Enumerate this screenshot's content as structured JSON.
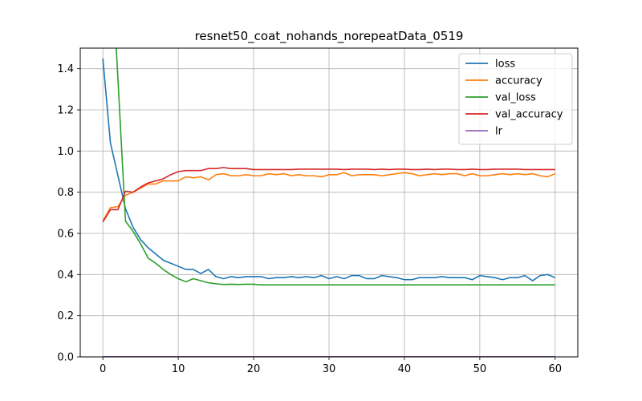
{
  "chart_data": {
    "type": "line",
    "title": "resnet50_coat_nohands_norepeatData_0519",
    "xlabel": "",
    "ylabel": "",
    "xlim": [
      -3,
      63
    ],
    "ylim": [
      0,
      1.5
    ],
    "xticks": [
      0,
      10,
      20,
      30,
      40,
      50,
      60
    ],
    "yticks": [
      0.0,
      0.2,
      0.4,
      0.6,
      0.8,
      1.0,
      1.2,
      1.4
    ],
    "grid": true,
    "legend": "top-right",
    "x": [
      0,
      1,
      2,
      3,
      4,
      5,
      6,
      7,
      8,
      9,
      10,
      11,
      12,
      13,
      14,
      15,
      16,
      17,
      18,
      19,
      20,
      21,
      22,
      23,
      24,
      25,
      26,
      27,
      28,
      29,
      30,
      31,
      32,
      33,
      34,
      35,
      36,
      37,
      38,
      39,
      40,
      41,
      42,
      43,
      44,
      45,
      46,
      47,
      48,
      49,
      50,
      51,
      52,
      53,
      54,
      55,
      56,
      57,
      58,
      59,
      60
    ],
    "series": [
      {
        "name": "loss",
        "color": "#1f77b4",
        "values": [
          1.45,
          1.04,
          0.88,
          0.72,
          0.63,
          0.57,
          0.53,
          0.5,
          0.47,
          0.455,
          0.44,
          0.425,
          0.425,
          0.405,
          0.425,
          0.39,
          0.38,
          0.39,
          0.385,
          0.39,
          0.39,
          0.39,
          0.38,
          0.385,
          0.385,
          0.39,
          0.385,
          0.39,
          0.385,
          0.395,
          0.38,
          0.39,
          0.38,
          0.395,
          0.395,
          0.38,
          0.38,
          0.395,
          0.39,
          0.385,
          0.375,
          0.375,
          0.385,
          0.385,
          0.385,
          0.39,
          0.385,
          0.385,
          0.385,
          0.375,
          0.395,
          0.39,
          0.385,
          0.375,
          0.385,
          0.385,
          0.395,
          0.37,
          0.395,
          0.4,
          0.385
        ]
      },
      {
        "name": "accuracy",
        "color": "#ff7f0e",
        "values": [
          0.66,
          0.725,
          0.73,
          0.785,
          0.8,
          0.82,
          0.84,
          0.84,
          0.855,
          0.855,
          0.855,
          0.875,
          0.87,
          0.875,
          0.86,
          0.885,
          0.89,
          0.88,
          0.88,
          0.885,
          0.88,
          0.88,
          0.89,
          0.885,
          0.89,
          0.88,
          0.885,
          0.88,
          0.88,
          0.875,
          0.885,
          0.885,
          0.895,
          0.88,
          0.885,
          0.885,
          0.885,
          0.88,
          0.885,
          0.89,
          0.895,
          0.89,
          0.88,
          0.885,
          0.89,
          0.885,
          0.89,
          0.89,
          0.88,
          0.89,
          0.88,
          0.88,
          0.885,
          0.89,
          0.885,
          0.89,
          0.885,
          0.89,
          0.88,
          0.875,
          0.89
        ]
      },
      {
        "name": "val_loss",
        "color": "#2ca02c",
        "values": [
          null,
          null,
          1.35,
          0.66,
          0.61,
          0.55,
          0.48,
          0.455,
          0.425,
          0.4,
          0.38,
          0.365,
          0.38,
          0.37,
          0.36,
          0.355,
          0.352,
          0.353,
          0.352,
          0.353,
          0.353,
          0.35,
          0.35,
          0.35,
          0.35,
          0.35,
          0.35,
          0.35,
          0.35,
          0.35,
          0.35,
          0.35,
          0.35,
          0.35,
          0.35,
          0.35,
          0.35,
          0.35,
          0.35,
          0.35,
          0.35,
          0.35,
          0.35,
          0.35,
          0.35,
          0.35,
          0.35,
          0.35,
          0.35,
          0.35,
          0.35,
          0.35,
          0.35,
          0.35,
          0.35,
          0.35,
          0.35,
          0.35,
          0.35,
          0.35,
          0.35
        ],
        "lead_in": {
          "x": [
            1.75,
            2
          ],
          "y": [
            1.52,
            1.35
          ]
        }
      },
      {
        "name": "val_accuracy",
        "color": "#d62728",
        "values": [
          0.655,
          0.715,
          0.715,
          0.805,
          0.8,
          0.825,
          0.845,
          0.855,
          0.865,
          0.885,
          0.9,
          0.905,
          0.905,
          0.905,
          0.915,
          0.915,
          0.92,
          0.915,
          0.915,
          0.915,
          0.91,
          0.91,
          0.91,
          0.91,
          0.91,
          0.91,
          0.912,
          0.912,
          0.912,
          0.912,
          0.912,
          0.912,
          0.91,
          0.912,
          0.912,
          0.912,
          0.91,
          0.912,
          0.91,
          0.912,
          0.912,
          0.91,
          0.91,
          0.912,
          0.91,
          0.912,
          0.912,
          0.91,
          0.91,
          0.912,
          0.91,
          0.91,
          0.912,
          0.912,
          0.912,
          0.912,
          0.91,
          0.91,
          0.91,
          0.91,
          0.91
        ]
      },
      {
        "name": "lr",
        "color": "#9467bd",
        "values": [
          0.001,
          0.001,
          0.001,
          0.001,
          0.001,
          0.001,
          0.001,
          0.001,
          0.001,
          0.001,
          0.001,
          0.001,
          0.001,
          0.001,
          0.001,
          0.001,
          0.001,
          0.001,
          0.001,
          0.001,
          0.001,
          0.001,
          0.001,
          0.001,
          0.001,
          0.001,
          0.001,
          0.001,
          0.001,
          0.001,
          0.001,
          0.001,
          0.001,
          0.001,
          0.001,
          0.001,
          0.001,
          0.001,
          0.001,
          0.001,
          0.001,
          0.001,
          0.001,
          0.001,
          0.001,
          0.001,
          0.001,
          0.001,
          0.001,
          0.001,
          0.001,
          0.001,
          0.001,
          0.001,
          0.001,
          0.001,
          0.001,
          0.001,
          0.001,
          0.001,
          0.001
        ]
      }
    ]
  }
}
